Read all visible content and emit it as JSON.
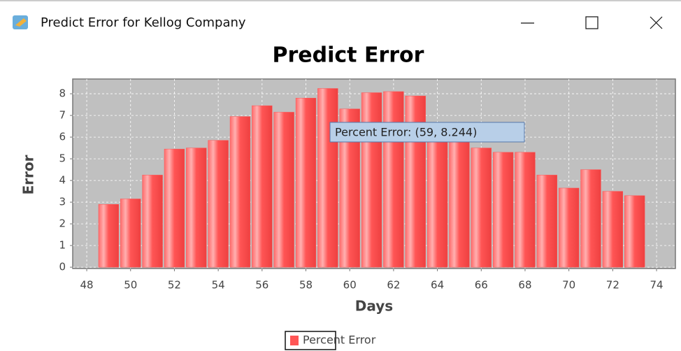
{
  "window": {
    "title": "Predict Error for Kellog Company"
  },
  "chart_data": {
    "type": "bar",
    "title": "Predict Error",
    "x_label": "Days",
    "y_label": "Error",
    "x": [
      49,
      50,
      51,
      52,
      53,
      54,
      55,
      56,
      57,
      58,
      59,
      60,
      61,
      62,
      63,
      64,
      65,
      66,
      67,
      68,
      69,
      70,
      71,
      72,
      73
    ],
    "series": [
      {
        "name": "Percent Error",
        "color": "#ff5555",
        "values": [
          2.9,
          3.15,
          4.25,
          5.45,
          5.5,
          5.85,
          6.95,
          7.45,
          7.15,
          7.8,
          8.244,
          7.3,
          8.05,
          8.1,
          7.9,
          6.0,
          5.9,
          5.5,
          5.3,
          5.3,
          4.25,
          3.65,
          4.5,
          3.5,
          3.3
        ]
      }
    ],
    "xlim": [
      47.36,
      74.86
    ],
    "ylim": [
      -0.06,
      8.68
    ],
    "xticks": [
      48,
      50,
      52,
      54,
      56,
      58,
      60,
      62,
      64,
      66,
      68,
      70,
      72,
      74
    ],
    "yticks": [
      0,
      1,
      2,
      3,
      4,
      5,
      6,
      7,
      8
    ],
    "grid": true,
    "legend": "bottom",
    "tooltip": "Percent Error: (59, 8.244)"
  }
}
